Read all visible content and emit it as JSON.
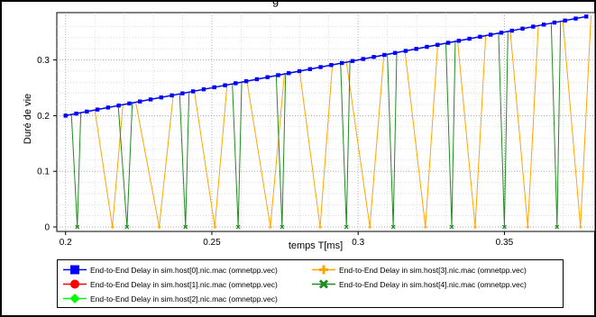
{
  "chart_data": {
    "type": "line",
    "title_fragment": "g",
    "xlabel": "temps T[ms]",
    "ylabel": "Duré de vie",
    "xlim": [
      0.197,
      0.381
    ],
    "ylim": [
      -0.008,
      0.385
    ],
    "x_ticks": [
      0.2,
      0.25,
      0.3,
      0.35
    ],
    "x_tick_labels": [
      "0.2",
      "0.25",
      "0.3",
      "0.35"
    ],
    "y_ticks": [
      0,
      0.1,
      0.2,
      0.3
    ],
    "y_tick_labels": [
      "0",
      "0.1",
      "0.2",
      "0.3"
    ],
    "grid": true,
    "series": [
      {
        "name": "End-to-End Delay in sim.host[0].nic.mac (omnetpp.vec)",
        "color": "#0000ff",
        "marker": "square",
        "x_start": 0.2,
        "x_end": 0.378,
        "points": 50,
        "y_start": 0.2,
        "y_end": 0.378
      },
      {
        "name": "End-to-End Delay in sim.host[1].nic.mac (omnetpp.vec)",
        "color": "#ff0000",
        "marker": "circle"
      },
      {
        "name": "End-to-End Delay in sim.host[2].nic.mac (omnetpp.vec)",
        "color": "#00ff00",
        "marker": "diamond"
      },
      {
        "name": "End-to-End Delay in sim.host[3].nic.mac (omnetpp.vec)",
        "color": "#ffa500",
        "marker": "plus",
        "spikes": [
          {
            "x_top": 0.21,
            "x_bottom": 0.216
          },
          {
            "x_top": 0.224,
            "x_bottom": 0.232
          },
          {
            "x_top": 0.244,
            "x_bottom": 0.251
          },
          {
            "x_top": 0.262,
            "x_bottom": 0.27
          },
          {
            "x_top": 0.28,
            "x_bottom": 0.287
          },
          {
            "x_top": 0.296,
            "x_bottom": 0.304
          },
          {
            "x_top": 0.316,
            "x_bottom": 0.323
          },
          {
            "x_top": 0.334,
            "x_bottom": 0.34
          },
          {
            "x_top": 0.352,
            "x_bottom": 0.358
          },
          {
            "x_top": 0.37,
            "x_bottom": 0.376
          }
        ]
      },
      {
        "name": "End-to-End Delay in sim.host[4].nic.mac (omnetpp.vec)",
        "color": "#228b22",
        "marker": "x",
        "spikes": [
          {
            "x_top": 0.202,
            "x_bottom": 0.204
          },
          {
            "x_top": 0.218,
            "x_bottom": 0.221
          },
          {
            "x_top": 0.239,
            "x_bottom": 0.241
          },
          {
            "x_top": 0.257,
            "x_bottom": 0.259
          },
          {
            "x_top": 0.272,
            "x_bottom": 0.274
          },
          {
            "x_top": 0.294,
            "x_bottom": 0.296
          },
          {
            "x_top": 0.31,
            "x_bottom": 0.312
          },
          {
            "x_top": 0.33,
            "x_bottom": 0.332
          },
          {
            "x_top": 0.348,
            "x_bottom": 0.35
          },
          {
            "x_top": 0.366,
            "x_bottom": 0.368
          }
        ]
      }
    ],
    "legend_position": "bottom"
  }
}
